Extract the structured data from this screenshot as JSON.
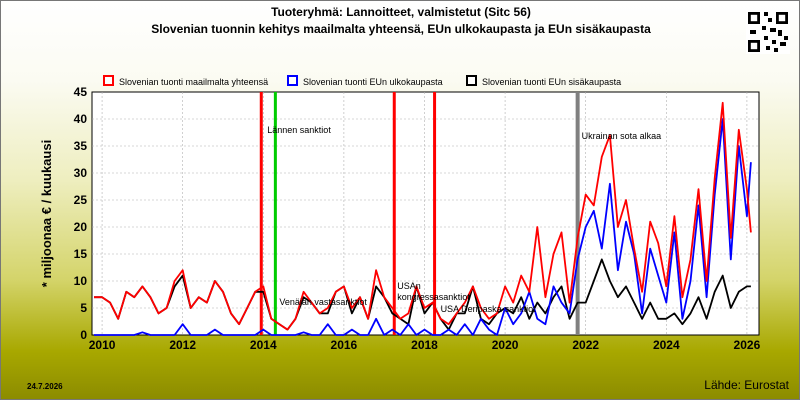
{
  "header": {
    "title_line1": "Tuoteryhmä: Lannoitteet, valmistetut (Sitc 56)",
    "title_line2": "Slovenian tuonnin kehitys maailmalta yhteensä, EUn ulkokaupasta ja EUn sisäkaupasta"
  },
  "footer": {
    "date": "24.7.2026",
    "source": "Lähde: Eurostat"
  },
  "icons": {
    "qr": "qr-code-icon"
  },
  "colors": {
    "total": "#ff0000",
    "extra_eu": "#0000ff",
    "intra_eu": "#000000",
    "event_red": "#ff0000",
    "event_green": "#00cc00",
    "event_gray": "#808080"
  },
  "chart_data": {
    "type": "line",
    "ylabel": "* miljoonaa € / kuukausi",
    "ylim": [
      0,
      45
    ],
    "yticks": [
      0,
      5,
      10,
      15,
      20,
      25,
      30,
      35,
      40,
      45
    ],
    "xlim": [
      2009.75,
      2026.3
    ],
    "xticks": [
      2010,
      2012,
      2014,
      2016,
      2018,
      2020,
      2022,
      2024,
      2026
    ],
    "grid": true,
    "legend_position": "top",
    "series": [
      {
        "key": "total",
        "name": "Slovenian tuonti maailmalta yhteensä",
        "color": "#ff0000",
        "x": [
          2009.8,
          2010.0,
          2010.2,
          2010.4,
          2010.6,
          2010.8,
          2011.0,
          2011.2,
          2011.4,
          2011.6,
          2011.8,
          2012.0,
          2012.2,
          2012.4,
          2012.6,
          2012.8,
          2013.0,
          2013.2,
          2013.4,
          2013.6,
          2013.8,
          2014.0,
          2014.2,
          2014.4,
          2014.6,
          2014.8,
          2015.0,
          2015.2,
          2015.4,
          2015.6,
          2015.8,
          2016.0,
          2016.2,
          2016.4,
          2016.6,
          2016.8,
          2017.0,
          2017.2,
          2017.4,
          2017.6,
          2017.8,
          2018.0,
          2018.2,
          2018.4,
          2018.6,
          2018.8,
          2019.0,
          2019.2,
          2019.4,
          2019.6,
          2019.8,
          2020.0,
          2020.2,
          2020.4,
          2020.6,
          2020.8,
          2021.0,
          2021.2,
          2021.4,
          2021.6,
          2021.8,
          2022.0,
          2022.2,
          2022.4,
          2022.6,
          2022.8,
          2023.0,
          2023.2,
          2023.4,
          2023.6,
          2023.8,
          2024.0,
          2024.2,
          2024.4,
          2024.6,
          2024.8,
          2025.0,
          2025.2,
          2025.4,
          2025.6,
          2025.8,
          2026.0,
          2026.1
        ],
        "y": [
          7,
          7,
          6,
          3,
          8,
          7,
          9,
          7,
          4,
          5,
          10,
          12,
          5,
          7,
          6,
          10,
          8,
          4,
          2,
          5,
          8,
          9,
          3,
          2,
          1,
          3,
          8,
          6,
          4,
          5,
          8,
          9,
          5,
          7,
          3,
          12,
          7,
          5,
          3,
          4,
          9,
          5,
          6,
          3,
          2,
          4,
          6,
          9,
          5,
          3,
          4,
          9,
          6,
          11,
          8,
          20,
          7,
          15,
          19,
          6,
          18,
          26,
          24,
          33,
          37,
          20,
          25,
          16,
          8,
          21,
          17,
          9,
          22,
          7,
          14,
          27,
          10,
          29,
          43,
          18,
          38,
          27,
          19
        ]
      },
      {
        "key": "extra_eu",
        "name": "Slovenian tuonti EUn ulkokaupasta",
        "color": "#0000ff",
        "x": [
          2009.8,
          2010.0,
          2010.2,
          2010.4,
          2010.6,
          2010.8,
          2011.0,
          2011.2,
          2011.4,
          2011.6,
          2011.8,
          2012.0,
          2012.2,
          2012.4,
          2012.6,
          2012.8,
          2013.0,
          2013.2,
          2013.4,
          2013.6,
          2013.8,
          2014.0,
          2014.2,
          2014.4,
          2014.6,
          2014.8,
          2015.0,
          2015.2,
          2015.4,
          2015.6,
          2015.8,
          2016.0,
          2016.2,
          2016.4,
          2016.6,
          2016.8,
          2017.0,
          2017.2,
          2017.4,
          2017.6,
          2017.8,
          2018.0,
          2018.2,
          2018.4,
          2018.6,
          2018.8,
          2019.0,
          2019.2,
          2019.4,
          2019.6,
          2019.8,
          2020.0,
          2020.2,
          2020.4,
          2020.6,
          2020.8,
          2021.0,
          2021.2,
          2021.4,
          2021.6,
          2021.8,
          2022.0,
          2022.2,
          2022.4,
          2022.6,
          2022.8,
          2023.0,
          2023.2,
          2023.4,
          2023.6,
          2023.8,
          2024.0,
          2024.2,
          2024.4,
          2024.6,
          2024.8,
          2025.0,
          2025.2,
          2025.4,
          2025.6,
          2025.8,
          2026.0,
          2026.1
        ],
        "y": [
          0,
          0,
          0,
          0,
          0,
          0,
          0.5,
          0,
          0,
          0,
          0,
          2,
          0,
          0,
          0,
          1,
          0,
          0,
          0,
          0,
          0,
          1,
          0,
          0,
          0,
          0,
          0.5,
          0,
          0,
          2,
          0,
          0,
          1,
          0,
          0,
          3,
          0,
          1,
          0,
          2,
          0,
          1,
          0,
          0,
          1,
          0,
          2,
          0,
          3,
          1,
          0,
          5,
          2,
          4,
          8,
          3,
          2,
          9,
          6,
          4,
          14,
          20,
          23,
          16,
          28,
          12,
          21,
          15,
          4,
          16,
          11,
          6,
          19,
          3,
          10,
          24,
          7,
          26,
          40,
          14,
          35,
          22,
          32
        ]
      },
      {
        "key": "intra_eu",
        "name": "Slovenian tuonti EUn sisäkaupasta",
        "color": "#000000",
        "x": [
          2009.8,
          2010.0,
          2010.2,
          2010.4,
          2010.6,
          2010.8,
          2011.0,
          2011.2,
          2011.4,
          2011.6,
          2011.8,
          2012.0,
          2012.2,
          2012.4,
          2012.6,
          2012.8,
          2013.0,
          2013.2,
          2013.4,
          2013.6,
          2013.8,
          2014.0,
          2014.2,
          2014.4,
          2014.6,
          2014.8,
          2015.0,
          2015.2,
          2015.4,
          2015.6,
          2015.8,
          2016.0,
          2016.2,
          2016.4,
          2016.6,
          2016.8,
          2017.0,
          2017.2,
          2017.4,
          2017.6,
          2017.8,
          2018.0,
          2018.2,
          2018.4,
          2018.6,
          2018.8,
          2019.0,
          2019.2,
          2019.4,
          2019.6,
          2019.8,
          2020.0,
          2020.2,
          2020.4,
          2020.6,
          2020.8,
          2021.0,
          2021.2,
          2021.4,
          2021.6,
          2021.8,
          2022.0,
          2022.2,
          2022.4,
          2022.6,
          2022.8,
          2023.0,
          2023.2,
          2023.4,
          2023.6,
          2023.8,
          2024.0,
          2024.2,
          2024.4,
          2024.6,
          2024.8,
          2025.0,
          2025.2,
          2025.4,
          2025.6,
          2025.8,
          2026.0,
          2026.1
        ],
        "y": [
          7,
          7,
          6,
          3,
          8,
          7,
          9,
          7,
          4,
          5,
          9,
          11,
          5,
          7,
          6,
          10,
          8,
          4,
          2,
          5,
          8,
          8,
          3,
          2,
          1,
          3,
          7,
          6,
          4,
          4,
          8,
          9,
          4,
          7,
          3,
          9,
          7,
          4,
          3,
          2,
          9,
          4,
          6,
          3,
          1,
          4,
          4,
          9,
          3,
          2,
          4,
          5,
          4,
          7,
          3,
          6,
          4,
          7,
          9,
          3,
          6,
          6,
          10,
          14,
          10,
          7,
          9,
          6,
          3,
          6,
          3,
          3,
          4,
          2,
          4,
          7,
          3,
          8,
          11,
          5,
          8,
          9,
          9
        ]
      }
    ],
    "events": [
      {
        "x": 2013.95,
        "color": "#ff0000",
        "label": "Lännen sanktiot"
      },
      {
        "x": 2014.3,
        "color": "#00cc00",
        "label": "Venäjän vastasanktiot"
      },
      {
        "x": 2017.25,
        "color": "#ff0000",
        "label": "USAn kongressasanktiot"
      },
      {
        "x": 2018.25,
        "color": "#ff0000",
        "label": "USA Deripaska-sanktiot"
      },
      {
        "x": 2021.8,
        "color": "#808080",
        "label": "Ukrainan sota alkaa"
      }
    ]
  }
}
